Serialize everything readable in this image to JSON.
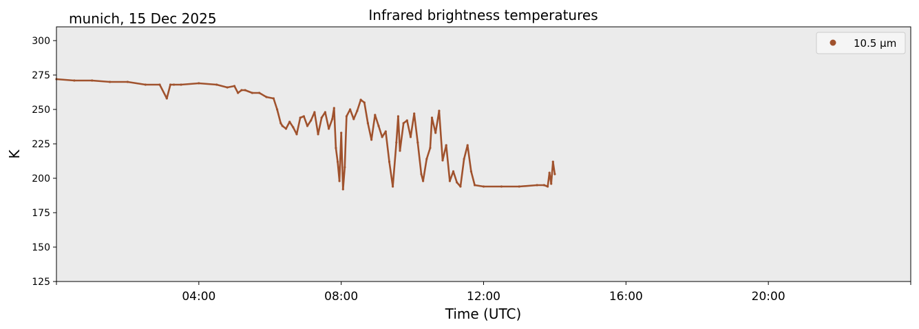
{
  "chart_data": {
    "type": "scatter",
    "title": "Infrared brightness temperatures",
    "location_label": "munich, 15 Dec 2025",
    "xlabel": "Time (UTC)",
    "ylabel": "K",
    "xlim_hours": [
      0,
      24
    ],
    "ylim": [
      125,
      310
    ],
    "x_ticks": [
      {
        "hour": 4,
        "label": "04:00"
      },
      {
        "hour": 8,
        "label": "08:00"
      },
      {
        "hour": 12,
        "label": "12:00"
      },
      {
        "hour": 16,
        "label": "16:00"
      },
      {
        "hour": 20,
        "label": "20:00"
      }
    ],
    "y_ticks": [
      125,
      150,
      175,
      200,
      225,
      250,
      275,
      300
    ],
    "legend": {
      "position": "top-right",
      "label": "10.5 µm"
    },
    "grid": false,
    "series": [
      {
        "name": "10.5 µm",
        "color": "#a0522d",
        "x_hours": [
          0.0,
          0.5,
          1.0,
          1.5,
          2.0,
          2.5,
          2.9,
          3.1,
          3.2,
          3.3,
          3.5,
          4.0,
          4.5,
          4.8,
          5.0,
          5.1,
          5.2,
          5.3,
          5.5,
          5.7,
          5.9,
          6.1,
          6.2,
          6.3,
          6.35,
          6.45,
          6.55,
          6.65,
          6.75,
          6.85,
          6.95,
          7.05,
          7.15,
          7.25,
          7.35,
          7.45,
          7.55,
          7.65,
          7.75,
          7.8,
          7.85,
          7.9,
          7.95,
          8.0,
          8.05,
          8.1,
          8.15,
          8.25,
          8.35,
          8.45,
          8.55,
          8.65,
          8.75,
          8.85,
          8.95,
          9.05,
          9.15,
          9.25,
          9.35,
          9.45,
          9.55,
          9.6,
          9.65,
          9.75,
          9.85,
          9.95,
          10.05,
          10.15,
          10.25,
          10.3,
          10.4,
          10.5,
          10.55,
          10.65,
          10.75,
          10.85,
          10.95,
          11.05,
          11.15,
          11.25,
          11.35,
          11.45,
          11.55,
          11.65,
          11.75,
          12.0,
          12.5,
          13.0,
          13.5,
          13.7,
          13.8,
          13.85,
          13.9,
          13.95,
          14.0
        ],
        "values": [
          272,
          271,
          271,
          270,
          270,
          268,
          268,
          258,
          268,
          268,
          268,
          269,
          268,
          266,
          267,
          262,
          264,
          264,
          262,
          262,
          259,
          258,
          250,
          240,
          238,
          236,
          241,
          237,
          232,
          244,
          245,
          238,
          242,
          248,
          232,
          244,
          248,
          236,
          243,
          251,
          222,
          212,
          198,
          233,
          192,
          208,
          245,
          250,
          243,
          249,
          257,
          255,
          240,
          228,
          246,
          238,
          230,
          234,
          212,
          194,
          226,
          245,
          220,
          240,
          242,
          230,
          247,
          226,
          203,
          198,
          214,
          222,
          244,
          233,
          249,
          213,
          224,
          198,
          205,
          197,
          194,
          214,
          224,
          205,
          195,
          194,
          194,
          194,
          195,
          195,
          194,
          204,
          196,
          212,
          203
        ]
      }
    ]
  }
}
